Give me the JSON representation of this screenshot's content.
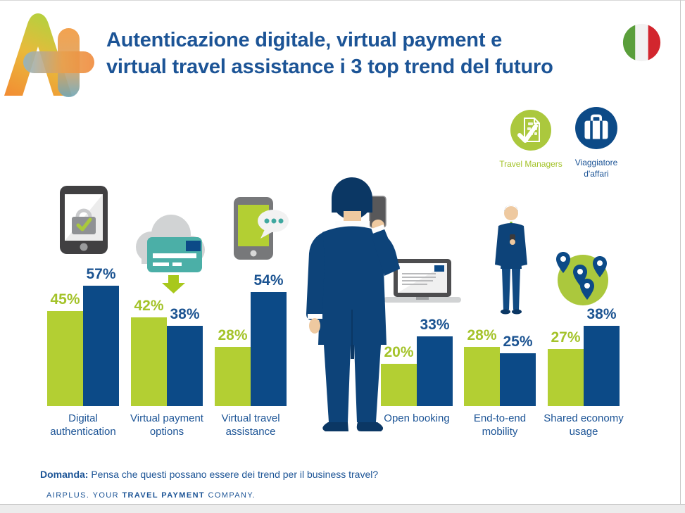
{
  "header": {
    "title_line1": "Autenticazione digitale, virtual payment e",
    "title_line2": "virtual travel assistance i 3 top trend del futuro",
    "logo_name": "airplus-a-plus-logo",
    "flag_name": "italy-flag"
  },
  "legend": {
    "items": [
      {
        "label": "Travel Managers",
        "icon": "travel-document-check-icon",
        "color": "#abc83d"
      },
      {
        "label": "Viaggiatore d'affari",
        "icon": "suitcase-icon",
        "color": "#0c4a87"
      }
    ]
  },
  "chart_data": {
    "type": "bar",
    "unit": "%",
    "categories": [
      "Digital authentication",
      "Virtual payment options",
      "Virtual travel assistance",
      "Open booking",
      "End-to-end mobility",
      "Shared economy usage"
    ],
    "series": [
      {
        "name": "Travel Managers",
        "color": "#b3cf33",
        "label_color": "#a4c32a",
        "values": [
          45,
          42,
          28,
          20,
          28,
          27
        ]
      },
      {
        "name": "Viaggiatore d'affari",
        "color": "#0c4a87",
        "label_color": "#1b5391",
        "values": [
          57,
          38,
          54,
          33,
          25,
          38
        ]
      }
    ],
    "ylim": [
      0,
      60
    ],
    "value_labels": true,
    "legend_position": "top-right",
    "grid": false,
    "category_icons": [
      "smartphone-lock-icon",
      "cloud-credit-card-icon",
      "smartphone-chat-icon",
      "laptop-icon",
      "business-traveler-figure-icon",
      "map-pins-circle-icon"
    ]
  },
  "footer": {
    "question_label": "Domanda:",
    "question_text": " Pensa che questi possano essere dei trend per il business travel?",
    "brand_pre": "AIRPLUS. YOUR ",
    "brand_bold": "TRAVEL PAYMENT",
    "brand_post": " COMPANY."
  },
  "colors": {
    "title_blue": "#1c5496",
    "bar_green": "#b3cf33",
    "bar_blue": "#0c4a87",
    "teal": "#4bafa7",
    "cloud_gray": "#d1d3d4",
    "suit_blue": "#0d4379"
  }
}
